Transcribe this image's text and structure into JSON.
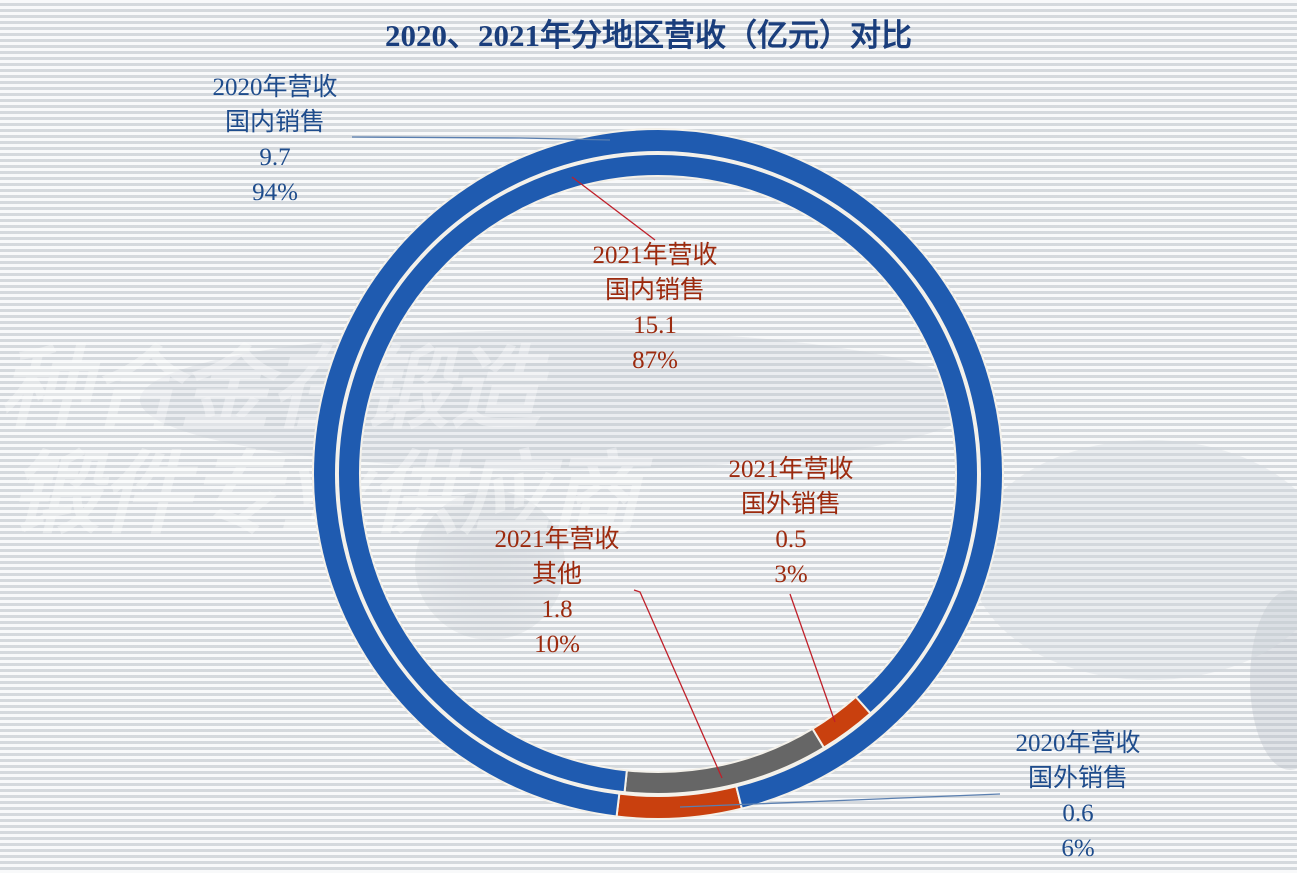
{
  "title": "2020、2021年分地区营收（亿元）对比",
  "background_watermark": [
    "种合金在锻造",
    "锻件专业供应商"
  ],
  "colors": {
    "domestic": "#1f5bb0",
    "foreign": "#c9400e",
    "other": "#666666",
    "label_2020": "#1e4c8c",
    "label_2021": "#9c2a0e",
    "leader_2021": "#c0202a",
    "leader_2020": "#5a7fb0"
  },
  "labels": {
    "outer_domestic": {
      "series": "2020年营收",
      "category": "国内销售",
      "value": "9.7",
      "percent": "94%"
    },
    "outer_foreign": {
      "series": "2020年营收",
      "category": "国外销售",
      "value": "0.6",
      "percent": "6%"
    },
    "inner_domestic": {
      "series": "2021年营收",
      "category": "国内销售",
      "value": "15.1",
      "percent": "87%"
    },
    "inner_foreign": {
      "series": "2021年营收",
      "category": "国外销售",
      "value": "0.5",
      "percent": "3%"
    },
    "inner_other": {
      "series": "2021年营收",
      "category": "其他",
      "value": "1.8",
      "percent": "10%"
    }
  },
  "chart_data": {
    "type": "pie",
    "subtype": "double-ring donut",
    "title": "2020、2021年分地区营收（亿元）对比",
    "unit": "亿元",
    "series": [
      {
        "name": "2020年营收",
        "ring": "outer",
        "categories": [
          "国内销售",
          "国外销售"
        ],
        "values": [
          9.7,
          0.6
        ],
        "percents": [
          94,
          6
        ],
        "colors": [
          "#1f5bb0",
          "#c9400e"
        ]
      },
      {
        "name": "2021年营收",
        "ring": "inner",
        "categories": [
          "国内销售",
          "国外销售",
          "其他"
        ],
        "values": [
          15.1,
          0.5,
          1.8
        ],
        "percents": [
          87,
          3,
          10
        ],
        "colors": [
          "#1f5bb0",
          "#c9400e",
          "#666666"
        ]
      }
    ],
    "legend": "none (data labels with leader lines)"
  }
}
